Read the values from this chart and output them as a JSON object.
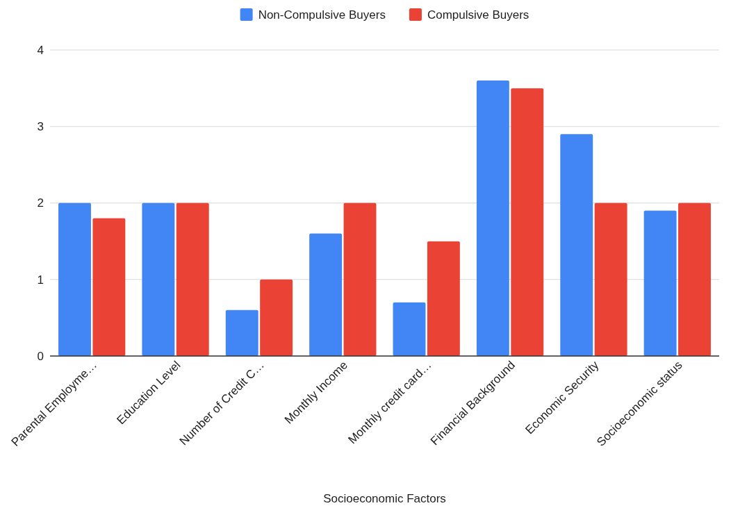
{
  "chart_data": {
    "type": "bar",
    "xlabel": "Socioeconomic Factors",
    "categories": [
      "Parental Employme…",
      "Education Level",
      "Number of Credit C…",
      "Monthly Income",
      "Monthly credit card…",
      "Financial Background",
      "Economic Security",
      "Socioeconomic status"
    ],
    "series": [
      {
        "name": "Non-Compulsive Buyers",
        "color": "#4285f4",
        "values": [
          2,
          2,
          0.6,
          1.6,
          0.7,
          3.6,
          2.9,
          1.9
        ]
      },
      {
        "name": "Compulsive Buyers",
        "color": "#ea4335",
        "values": [
          1.8,
          2,
          1,
          2,
          1.5,
          3.5,
          2,
          2
        ]
      }
    ],
    "ylim": [
      0,
      4
    ],
    "yticks": [
      0,
      1,
      2,
      3,
      4
    ],
    "grid": "y",
    "legend": "top"
  }
}
